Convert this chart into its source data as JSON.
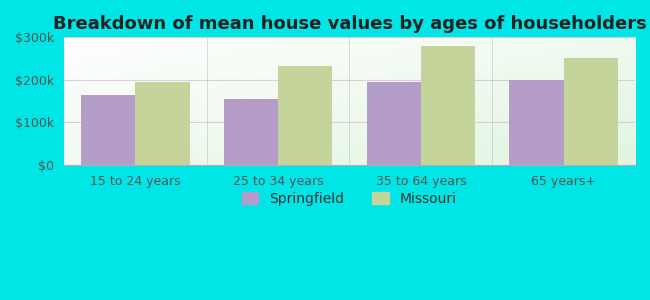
{
  "title": "Breakdown of mean house values by ages of householders",
  "categories": [
    "15 to 24 years",
    "25 to 34 years",
    "35 to 64 years",
    "65 years+"
  ],
  "springfield_values": [
    165000,
    155000,
    195000,
    200000
  ],
  "missouri_values": [
    195000,
    232000,
    280000,
    252000
  ],
  "springfield_color": "#b59dca",
  "missouri_color": "#c5d49a",
  "background_color": "#00e5e5",
  "ylim": [
    0,
    300000
  ],
  "yticks": [
    0,
    100000,
    200000,
    300000
  ],
  "ytick_labels": [
    "$0",
    "$100k",
    "$200k",
    "$300k"
  ],
  "bar_width": 0.38,
  "legend_labels": [
    "Springfield",
    "Missouri"
  ],
  "title_fontsize": 13,
  "tick_fontsize": 9,
  "legend_fontsize": 10,
  "grid_color": "#d4b8d4",
  "separator_color": "#b0b0b0"
}
